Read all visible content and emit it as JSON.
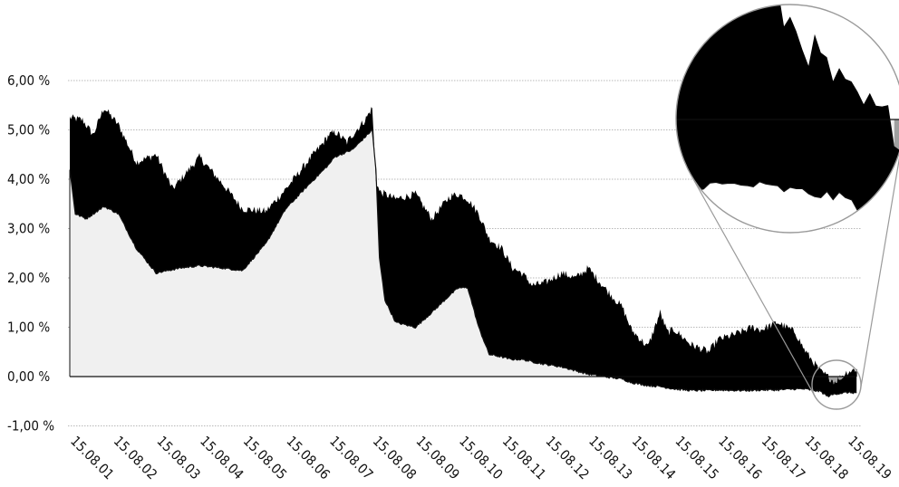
{
  "chart_data": {
    "type": "area",
    "title": "",
    "xlabel": "",
    "ylabel": "",
    "ylim": [
      -1.0,
      6.0
    ],
    "y_ticks": [
      "-1,00 %",
      "0,00 %",
      "1,00 %",
      "2,00 %",
      "3,00 %",
      "4,00 %",
      "5,00 %",
      "6,00 %"
    ],
    "y_tick_values": [
      -1,
      0,
      1,
      2,
      3,
      4,
      5,
      6
    ],
    "x_ticks": [
      "15.08.01",
      "15.08.02",
      "15.08.03",
      "15.08.04",
      "15.08.05",
      "15.08.06",
      "15.08.07",
      "15.08.08",
      "15.08.09",
      "15.08.10",
      "15.08.11",
      "15.08.12",
      "15.08.13",
      "15.08.14",
      "15.08.15",
      "15.08.16",
      "15.08.17",
      "15.08.18",
      "15.08.19"
    ],
    "grid": true,
    "colors": {
      "lower_fill": "#f0f0f0",
      "upper_fill": "#000000",
      "negative_fill": "#a0a0a0",
      "grid": "#b8b8b8",
      "zero_line": "#111111"
    },
    "series": [
      {
        "role": "upper",
        "x": [
          "2001-08-15",
          "2001-12-01",
          "2002-03-01",
          "2002-06-01",
          "2002-10-01",
          "2003-03-01",
          "2003-08-15",
          "2004-01-01",
          "2004-08-15",
          "2005-03-01",
          "2005-08-15",
          "2006-03-01",
          "2006-08-15",
          "2007-03-01",
          "2007-06-15",
          "2007-08-15",
          "2007-10-15",
          "2008-01-15",
          "2008-03-01",
          "2008-06-15",
          "2008-08-15",
          "2008-09-15",
          "2008-10-15",
          "2008-12-01",
          "2009-03-01",
          "2009-08-15",
          "2010-01-01",
          "2010-06-01",
          "2010-08-15",
          "2010-11-01",
          "2011-02-01",
          "2011-05-01",
          "2011-08-15",
          "2011-11-15",
          "2012-02-01",
          "2012-05-01",
          "2012-08-15",
          "2013-01-01",
          "2013-05-01",
          "2013-08-15",
          "2014-01-01",
          "2014-06-01",
          "2014-08-15",
          "2015-01-01",
          "2015-04-15",
          "2015-06-15",
          "2015-08-15",
          "2016-01-01",
          "2016-06-01",
          "2016-08-15",
          "2017-01-01",
          "2017-06-01",
          "2017-08-15",
          "2018-01-01",
          "2018-06-01",
          "2018-08-15",
          "2019-01-01",
          "2019-05-01",
          "2019-08-15",
          "2019-11-01"
        ],
        "y": [
          5.25,
          5.2,
          4.9,
          5.45,
          5.1,
          4.35,
          4.5,
          3.8,
          4.45,
          3.9,
          3.4,
          3.35,
          3.8,
          4.4,
          4.7,
          4.9,
          4.95,
          4.75,
          4.9,
          5.2,
          5.45,
          4.0,
          3.75,
          3.7,
          3.6,
          3.7,
          3.2,
          3.65,
          3.7,
          3.6,
          3.3,
          2.8,
          2.6,
          2.2,
          2.1,
          1.85,
          1.9,
          2.1,
          2.0,
          2.2,
          1.8,
          1.4,
          0.95,
          0.6,
          1.3,
          0.9,
          0.95,
          0.65,
          0.5,
          0.75,
          0.85,
          1.0,
          0.95,
          1.1,
          0.9,
          0.55,
          0.1,
          -0.1,
          0.1,
          0.15
        ]
      },
      {
        "role": "lower",
        "x": [
          "2001-08-15",
          "2001-10-01",
          "2002-01-01",
          "2002-06-01",
          "2002-10-01",
          "2003-03-01",
          "2003-08-15",
          "2004-03-01",
          "2004-08-15",
          "2005-03-01",
          "2005-08-15",
          "2006-03-01",
          "2006-08-15",
          "2007-03-01",
          "2007-08-15",
          "2007-10-01",
          "2008-03-01",
          "2008-08-15",
          "2008-09-15",
          "2008-10-15",
          "2008-12-01",
          "2009-03-01",
          "2009-08-15",
          "2010-01-01",
          "2010-06-01",
          "2010-08-15",
          "2010-11-01",
          "2011-02-01",
          "2011-05-01",
          "2011-08-15",
          "2011-11-01",
          "2012-02-01",
          "2012-05-01",
          "2012-08-15",
          "2013-01-01",
          "2013-05-01",
          "2013-08-15",
          "2014-01-01",
          "2014-06-01",
          "2014-08-15",
          "2015-01-01",
          "2015-04-15",
          "2015-08-15",
          "2016-01-01",
          "2016-06-01",
          "2016-08-15",
          "2017-01-01",
          "2017-06-01",
          "2017-08-15",
          "2018-01-01",
          "2018-06-01",
          "2018-08-15",
          "2019-01-01",
          "2019-03-01",
          "2019-05-01",
          "2019-08-15",
          "2019-11-01"
        ],
        "y": [
          4.2,
          3.3,
          3.2,
          3.45,
          3.3,
          2.6,
          2.1,
          2.2,
          2.25,
          2.2,
          2.15,
          2.7,
          3.4,
          3.9,
          4.3,
          4.45,
          4.6,
          5.0,
          4.2,
          2.4,
          1.55,
          1.1,
          1.0,
          1.3,
          1.65,
          1.8,
          1.8,
          1.0,
          0.45,
          0.4,
          0.35,
          0.35,
          0.3,
          0.25,
          0.2,
          0.12,
          0.05,
          0.0,
          -0.05,
          -0.12,
          -0.18,
          -0.2,
          -0.25,
          -0.28,
          -0.28,
          -0.27,
          -0.28,
          -0.28,
          -0.27,
          -0.27,
          -0.25,
          -0.25,
          -0.3,
          -0.4,
          -0.35,
          -0.32,
          -0.33
        ]
      }
    ]
  }
}
